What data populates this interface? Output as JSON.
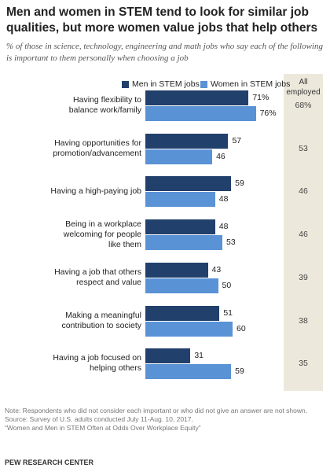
{
  "chart_data": {
    "type": "bar",
    "orientation": "horizontal",
    "title": "Men and women in STEM tend to look for similar job qualities, but more women value jobs that help others",
    "subtitle": "% of those in science, technology, engineering and math jobs who say each of the following is important to them personally when choosing a job",
    "categories": [
      "Having flexibility to\nbalance work/family",
      "Having opportunities for\npromotion/advancement",
      "Having a high-paying job",
      "Being in a workplace\nwelcoming for people\nlike them",
      "Having a job that others\nrespect and value",
      "Making a meaningful\ncontribution to society",
      "Having a job focused on\nhelping others"
    ],
    "series": [
      {
        "name": "Men in STEM jobs",
        "color": "#22406c",
        "values": [
          71,
          57,
          59,
          48,
          43,
          51,
          31
        ],
        "value_labels": [
          "71%",
          "57",
          "59",
          "48",
          "43",
          "51",
          "31"
        ]
      },
      {
        "name": "Women in STEM jobs",
        "color": "#5a92d6",
        "values": [
          76,
          46,
          48,
          53,
          50,
          60,
          59
        ],
        "value_labels": [
          "76%",
          "46",
          "48",
          "53",
          "50",
          "60",
          "59"
        ]
      }
    ],
    "all_employed": {
      "name": "All employed",
      "values": [
        68,
        53,
        46,
        46,
        39,
        38,
        35
      ],
      "value_labels": [
        "68%",
        "53",
        "46",
        "46",
        "39",
        "38",
        "35"
      ]
    },
    "notes": [
      "Note: Respondents who did not consider each important or who did not give an answer are not shown.",
      "Source: Survey of U.S. adults conducted July 11-Aug. 10, 2017.",
      "“Women and Men in STEM Often at Odds Over Workplace Equity”"
    ],
    "source": "PEW RESEARCH CENTER"
  }
}
